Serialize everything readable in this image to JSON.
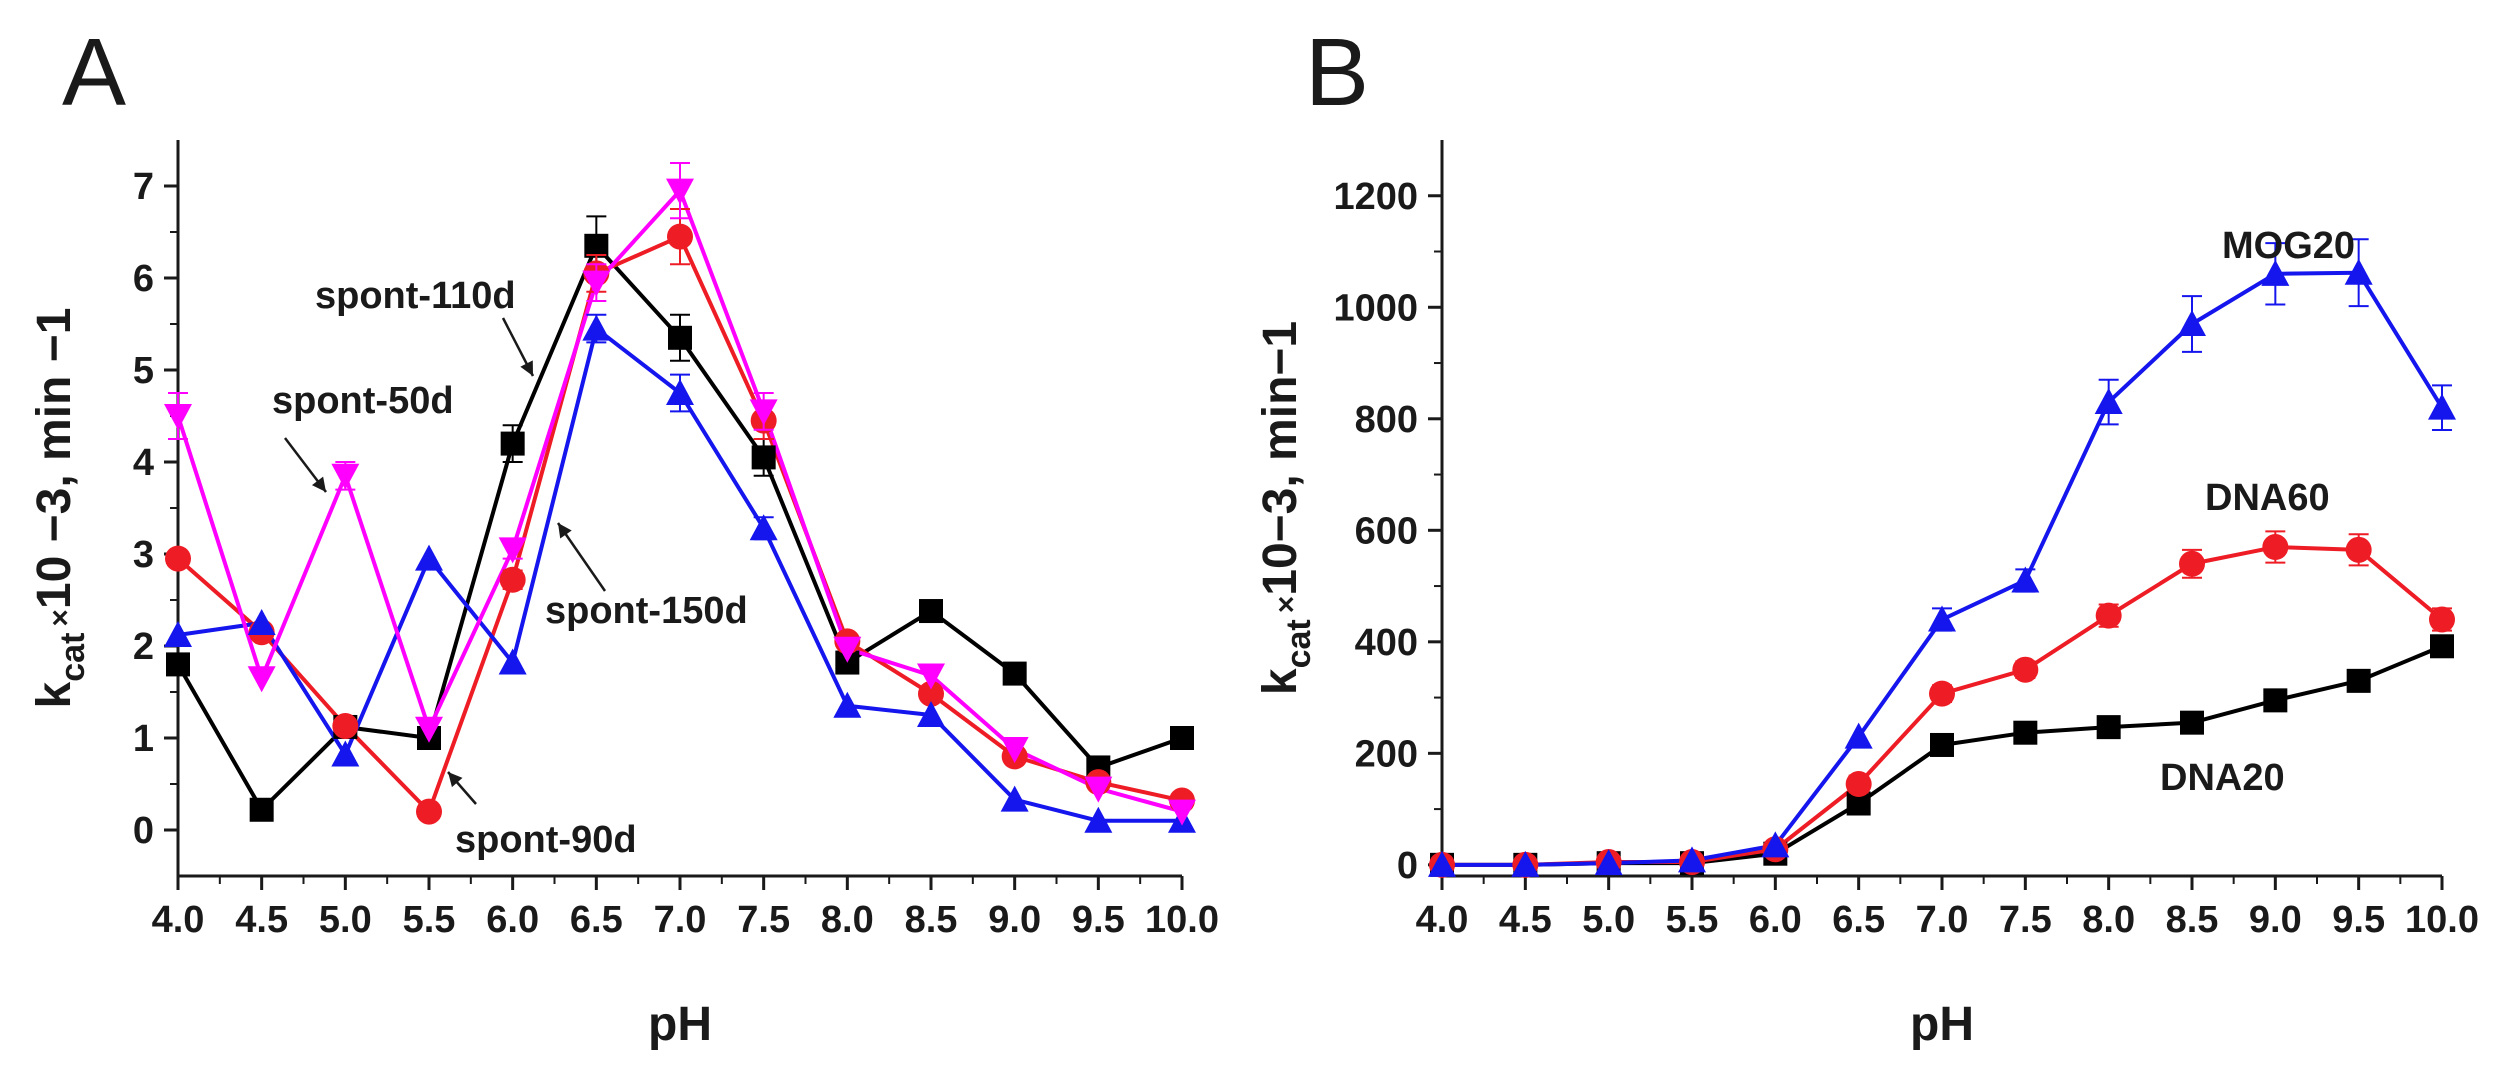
{
  "chart_data": [
    {
      "panel": "A",
      "type": "line",
      "xlabel": "pH",
      "ylabel": {
        "main": "k",
        "sub": "cat",
        "mult": "×",
        "rest": "10 −3, min −1"
      },
      "xlim": [
        4.0,
        10.0
      ],
      "ylim": [
        -0.5,
        7.5
      ],
      "xticks": [
        "4.0",
        "4.5",
        "5.0",
        "5.5",
        "6.0",
        "6.5",
        "7.0",
        "7.5",
        "8.0",
        "8.5",
        "9.0",
        "9.5",
        "10.0"
      ],
      "yticks": [
        "0",
        "1",
        "2",
        "3",
        "4",
        "5",
        "6",
        "7"
      ],
      "x": [
        4.0,
        4.5,
        5.0,
        5.5,
        6.0,
        6.5,
        7.0,
        7.5,
        8.0,
        8.5,
        9.0,
        9.5,
        10.0
      ],
      "series": [
        {
          "name": "spont-110d",
          "color": "#000000",
          "marker": "square",
          "values": [
            1.8,
            0.22,
            1.12,
            1.0,
            4.2,
            6.35,
            5.35,
            4.05,
            1.82,
            2.38,
            1.7,
            0.68,
            1.0
          ],
          "errors": [
            0,
            0,
            0,
            0,
            0.2,
            0.32,
            0.25,
            0.2,
            0,
            0,
            0,
            0,
            0
          ]
        },
        {
          "name": "spont-90d",
          "color": "#ee1c25",
          "marker": "circle",
          "values": [
            2.95,
            2.15,
            1.13,
            0.2,
            2.72,
            6.05,
            6.45,
            4.45,
            2.05,
            1.48,
            0.8,
            0.52,
            0.32
          ],
          "errors": [
            0,
            0,
            0,
            0,
            0.1,
            0.2,
            0.3,
            0.2,
            0,
            0,
            0,
            0,
            0
          ]
        },
        {
          "name": "spont-150d",
          "color": "#1515ee",
          "marker": "triangle-up",
          "values": [
            2.12,
            2.25,
            0.82,
            2.95,
            1.82,
            5.45,
            4.75,
            3.28,
            1.35,
            1.25,
            0.33,
            0.1,
            0.1
          ],
          "errors": [
            0,
            0,
            0,
            0,
            0,
            0.15,
            0.2,
            0.12,
            0,
            0,
            0,
            0,
            0
          ]
        },
        {
          "name": "spont-50d",
          "color": "#ff00ff",
          "marker": "triangle-down",
          "values": [
            4.5,
            1.65,
            3.85,
            1.1,
            3.05,
            5.95,
            6.95,
            4.55,
            1.97,
            1.68,
            0.88,
            0.45,
            0.2
          ],
          "errors": [
            0.25,
            0,
            0.15,
            0,
            0.1,
            0.2,
            0.3,
            0.2,
            0,
            0,
            0,
            0,
            0
          ]
        }
      ],
      "annotations": [
        "spont-110d",
        "spont-50d",
        "spont-150d",
        "spont-90d"
      ]
    },
    {
      "panel": "B",
      "type": "line",
      "xlabel": "pH",
      "ylabel": {
        "main": "k",
        "sub": "cat",
        "mult": "×",
        "rest": "10−3, min−1"
      },
      "xlim": [
        4.0,
        10.0
      ],
      "ylim": [
        -20,
        1300
      ],
      "xticks": [
        "4.0",
        "4.5",
        "5.0",
        "5.5",
        "6.0",
        "6.5",
        "7.0",
        "7.5",
        "8.0",
        "8.5",
        "9.0",
        "9.5",
        "10.0"
      ],
      "yticks": [
        "0",
        "200",
        "400",
        "600",
        "800",
        "1000",
        "1200"
      ],
      "x": [
        4.0,
        4.5,
        5.0,
        5.5,
        6.0,
        6.5,
        7.0,
        7.5,
        8.0,
        8.5,
        9.0,
        9.5,
        10.0
      ],
      "series": [
        {
          "name": "DNA20",
          "color": "#000000",
          "marker": "square",
          "values": [
            0,
            0,
            3,
            3,
            20,
            110,
            215,
            237,
            247,
            255,
            295,
            330,
            392
          ],
          "errors": [
            0,
            0,
            0,
            0,
            0,
            0,
            0,
            0,
            0,
            0,
            0,
            0,
            0
          ]
        },
        {
          "name": "DNA60",
          "color": "#ee1c25",
          "marker": "circle",
          "values": [
            0,
            0,
            5,
            5,
            28,
            145,
            307,
            350,
            447,
            540,
            570,
            565,
            440
          ],
          "errors": [
            0,
            0,
            0,
            0,
            0,
            15,
            15,
            15,
            20,
            25,
            28,
            28,
            20
          ]
        },
        {
          "name": "MOG20",
          "color": "#1515ee",
          "marker": "triangle-up",
          "values": [
            0,
            0,
            3,
            8,
            35,
            230,
            440,
            510,
            830,
            970,
            1060,
            1062,
            820
          ],
          "errors": [
            0,
            0,
            0,
            0,
            0,
            0,
            20,
            20,
            40,
            50,
            55,
            60,
            40
          ]
        }
      ],
      "annotations": [
        "MOG20",
        "DNA60",
        "DNA20"
      ]
    }
  ]
}
